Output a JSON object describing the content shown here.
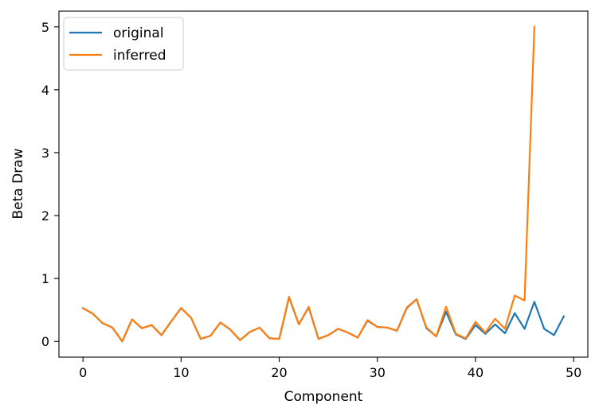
{
  "chart_data": {
    "type": "line",
    "title": "",
    "xlabel": "Component",
    "ylabel": "Beta Draw",
    "xlim": [
      -2.45,
      51.45
    ],
    "ylim": [
      -0.25,
      5.25
    ],
    "xticks": [
      0,
      10,
      20,
      30,
      40,
      50
    ],
    "yticks": [
      0,
      1,
      2,
      3,
      4,
      5
    ],
    "grid": false,
    "legend_position": "top-left",
    "series": [
      {
        "name": "original",
        "color": "#1f77b4",
        "x": [
          0,
          1,
          2,
          3,
          4,
          5,
          6,
          7,
          8,
          9,
          10,
          11,
          12,
          13,
          14,
          15,
          16,
          17,
          18,
          19,
          20,
          21,
          22,
          23,
          24,
          25,
          26,
          27,
          28,
          29,
          30,
          31,
          32,
          33,
          34,
          35,
          36,
          37,
          38,
          39,
          40,
          41,
          42,
          43,
          44,
          45,
          46,
          47,
          48,
          49
        ],
        "values": [
          0.53,
          0.44,
          0.29,
          0.22,
          0.0,
          0.35,
          0.21,
          0.26,
          0.1,
          0.32,
          0.53,
          0.38,
          0.04,
          0.09,
          0.3,
          0.19,
          0.02,
          0.15,
          0.22,
          0.05,
          0.04,
          0.7,
          0.27,
          0.54,
          0.04,
          0.1,
          0.2,
          0.14,
          0.06,
          0.33,
          0.23,
          0.22,
          0.17,
          0.53,
          0.67,
          0.21,
          0.08,
          0.47,
          0.11,
          0.04,
          0.26,
          0.12,
          0.27,
          0.13,
          0.45,
          0.2,
          0.63,
          0.2,
          0.1,
          0.4
        ]
      },
      {
        "name": "inferred",
        "color": "#ff7f0e",
        "x": [
          0,
          1,
          2,
          3,
          4,
          5,
          6,
          7,
          8,
          9,
          10,
          11,
          12,
          13,
          14,
          15,
          16,
          17,
          18,
          19,
          20,
          21,
          22,
          23,
          24,
          25,
          26,
          27,
          28,
          29,
          30,
          31,
          32,
          33,
          34,
          35,
          36,
          37,
          38,
          39,
          40,
          41,
          42,
          43,
          44,
          45,
          46
        ],
        "values": [
          0.53,
          0.44,
          0.29,
          0.22,
          0.0,
          0.35,
          0.21,
          0.26,
          0.1,
          0.32,
          0.53,
          0.38,
          0.04,
          0.09,
          0.3,
          0.19,
          0.02,
          0.15,
          0.22,
          0.05,
          0.04,
          0.71,
          0.27,
          0.55,
          0.04,
          0.1,
          0.2,
          0.14,
          0.06,
          0.34,
          0.23,
          0.22,
          0.17,
          0.54,
          0.67,
          0.22,
          0.08,
          0.55,
          0.12,
          0.05,
          0.31,
          0.14,
          0.36,
          0.2,
          0.73,
          0.65,
          5.0
        ]
      }
    ]
  }
}
